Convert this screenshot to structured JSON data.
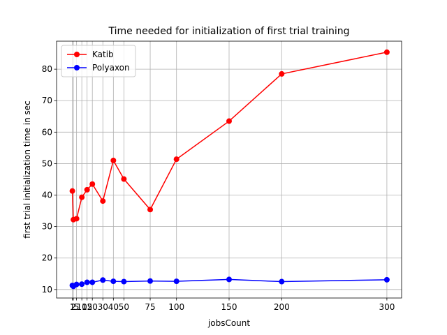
{
  "chart_data": {
    "type": "line",
    "title": "Time needed for initialization of first trial training",
    "xlabel": "jobsCount",
    "ylabel": "first trial initialization time in sec",
    "x": [
      1,
      2,
      5,
      10,
      15,
      20,
      30,
      40,
      50,
      75,
      100,
      150,
      200,
      300
    ],
    "series": [
      {
        "name": "Katib",
        "color": "#ff0000",
        "values": [
          41.3,
          32.2,
          32.5,
          39.3,
          41.7,
          43.5,
          38.1,
          51.0,
          45.1,
          35.4,
          51.4,
          63.5,
          78.5,
          85.4
        ]
      },
      {
        "name": "Polyaxon",
        "color": "#0000ff",
        "values": [
          11.3,
          11.0,
          11.6,
          11.7,
          12.3,
          12.3,
          13.0,
          12.6,
          12.5,
          12.7,
          12.6,
          13.2,
          12.5,
          13.1
        ]
      }
    ],
    "xlim": [
      -14,
      314
    ],
    "ylim": [
      7.3,
      88.9
    ],
    "xticks": [
      1,
      2,
      5,
      10,
      15,
      20,
      30,
      40,
      50,
      75,
      100,
      150,
      200,
      300
    ],
    "yticks": [
      10,
      20,
      30,
      40,
      50,
      60,
      70,
      80
    ],
    "grid": true,
    "legend": "upper left"
  }
}
